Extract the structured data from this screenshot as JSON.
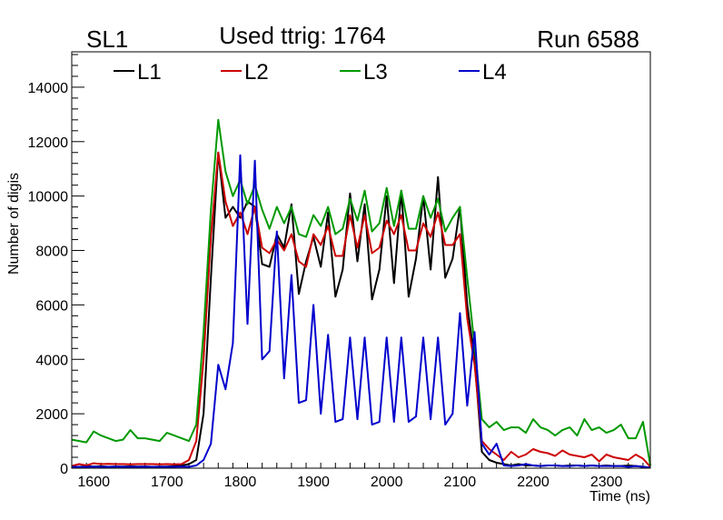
{
  "header": {
    "left": "SL1",
    "center": "Used ttrig: 1764",
    "right": "Run 6588"
  },
  "chart_data": {
    "type": "line",
    "xlabel": "Time (ns)",
    "ylabel": "Number of digis",
    "xlim": [
      1570,
      2360
    ],
    "ylim": [
      0,
      15300
    ],
    "xticks": [
      1600,
      1700,
      1800,
      1900,
      2000,
      2100,
      2200,
      2300
    ],
    "yticks": [
      0,
      2000,
      4000,
      6000,
      8000,
      10000,
      12000,
      14000
    ],
    "legend_position": "top",
    "series": [
      {
        "name": "L1",
        "color": "#000000",
        "points": [
          [
            1570,
            50
          ],
          [
            1580,
            50
          ],
          [
            1590,
            70
          ],
          [
            1600,
            60
          ],
          [
            1610,
            70
          ],
          [
            1620,
            50
          ],
          [
            1630,
            60
          ],
          [
            1640,
            60
          ],
          [
            1650,
            70
          ],
          [
            1660,
            60
          ],
          [
            1670,
            60
          ],
          [
            1680,
            50
          ],
          [
            1690,
            60
          ],
          [
            1700,
            60
          ],
          [
            1710,
            80
          ],
          [
            1720,
            100
          ],
          [
            1730,
            150
          ],
          [
            1740,
            300
          ],
          [
            1750,
            2000
          ],
          [
            1760,
            7000
          ],
          [
            1770,
            11600
          ],
          [
            1780,
            9200
          ],
          [
            1790,
            9600
          ],
          [
            1800,
            9200
          ],
          [
            1810,
            9800
          ],
          [
            1820,
            9600
          ],
          [
            1830,
            7500
          ],
          [
            1840,
            7400
          ],
          [
            1850,
            8600
          ],
          [
            1860,
            8100
          ],
          [
            1870,
            9700
          ],
          [
            1880,
            6400
          ],
          [
            1890,
            7600
          ],
          [
            1900,
            8500
          ],
          [
            1910,
            7400
          ],
          [
            1920,
            9400
          ],
          [
            1930,
            6300
          ],
          [
            1940,
            7300
          ],
          [
            1950,
            10100
          ],
          [
            1960,
            7600
          ],
          [
            1970,
            9700
          ],
          [
            1980,
            6200
          ],
          [
            1990,
            7300
          ],
          [
            2000,
            10000
          ],
          [
            2010,
            6800
          ],
          [
            2020,
            10200
          ],
          [
            2030,
            6300
          ],
          [
            2040,
            7700
          ],
          [
            2050,
            10000
          ],
          [
            2060,
            7300
          ],
          [
            2070,
            10700
          ],
          [
            2080,
            7000
          ],
          [
            2090,
            7700
          ],
          [
            2100,
            9600
          ],
          [
            2110,
            6000
          ],
          [
            2120,
            4000
          ],
          [
            2130,
            600
          ],
          [
            2140,
            300
          ],
          [
            2150,
            200
          ],
          [
            2160,
            150
          ],
          [
            2170,
            100
          ],
          [
            2180,
            150
          ],
          [
            2190,
            100
          ],
          [
            2200,
            100
          ],
          [
            2210,
            80
          ],
          [
            2220,
            100
          ],
          [
            2230,
            100
          ],
          [
            2240,
            80
          ],
          [
            2250,
            100
          ],
          [
            2260,
            100
          ],
          [
            2270,
            80
          ],
          [
            2280,
            100
          ],
          [
            2290,
            80
          ],
          [
            2300,
            100
          ],
          [
            2310,
            80
          ],
          [
            2320,
            80
          ],
          [
            2330,
            100
          ],
          [
            2340,
            80
          ],
          [
            2350,
            50
          ],
          [
            2360,
            20
          ]
        ]
      },
      {
        "name": "L2",
        "color": "#cc0000",
        "points": [
          [
            1570,
            80
          ],
          [
            1580,
            150
          ],
          [
            1590,
            100
          ],
          [
            1600,
            180
          ],
          [
            1610,
            150
          ],
          [
            1620,
            160
          ],
          [
            1630,
            150
          ],
          [
            1640,
            150
          ],
          [
            1650,
            140
          ],
          [
            1660,
            150
          ],
          [
            1670,
            150
          ],
          [
            1680,
            150
          ],
          [
            1690,
            140
          ],
          [
            1700,
            150
          ],
          [
            1710,
            140
          ],
          [
            1720,
            150
          ],
          [
            1730,
            300
          ],
          [
            1740,
            1000
          ],
          [
            1750,
            4000
          ],
          [
            1760,
            8500
          ],
          [
            1770,
            11600
          ],
          [
            1780,
            9800
          ],
          [
            1790,
            8900
          ],
          [
            1800,
            9400
          ],
          [
            1810,
            8600
          ],
          [
            1820,
            9600
          ],
          [
            1830,
            8100
          ],
          [
            1840,
            7900
          ],
          [
            1850,
            8400
          ],
          [
            1860,
            8000
          ],
          [
            1870,
            8600
          ],
          [
            1880,
            7600
          ],
          [
            1890,
            7400
          ],
          [
            1900,
            8600
          ],
          [
            1910,
            8200
          ],
          [
            1920,
            8900
          ],
          [
            1930,
            7800
          ],
          [
            1940,
            7800
          ],
          [
            1950,
            9300
          ],
          [
            1960,
            8100
          ],
          [
            1970,
            9300
          ],
          [
            1980,
            7900
          ],
          [
            1990,
            8100
          ],
          [
            2000,
            9100
          ],
          [
            2010,
            8600
          ],
          [
            2020,
            9300
          ],
          [
            2030,
            8000
          ],
          [
            2040,
            8000
          ],
          [
            2050,
            9000
          ],
          [
            2060,
            8500
          ],
          [
            2070,
            9400
          ],
          [
            2080,
            8200
          ],
          [
            2090,
            8200
          ],
          [
            2100,
            8600
          ],
          [
            2110,
            5500
          ],
          [
            2120,
            3800
          ],
          [
            2130,
            1000
          ],
          [
            2140,
            700
          ],
          [
            2150,
            500
          ],
          [
            2160,
            300
          ],
          [
            2170,
            600
          ],
          [
            2180,
            400
          ],
          [
            2190,
            500
          ],
          [
            2200,
            700
          ],
          [
            2210,
            600
          ],
          [
            2220,
            550
          ],
          [
            2230,
            450
          ],
          [
            2240,
            650
          ],
          [
            2250,
            500
          ],
          [
            2260,
            450
          ],
          [
            2270,
            400
          ],
          [
            2280,
            500
          ],
          [
            2290,
            250
          ],
          [
            2300,
            500
          ],
          [
            2310,
            400
          ],
          [
            2320,
            350
          ],
          [
            2330,
            300
          ],
          [
            2340,
            500
          ],
          [
            2350,
            350
          ],
          [
            2360,
            50
          ]
        ]
      },
      {
        "name": "L3",
        "color": "#009900",
        "points": [
          [
            1570,
            1050
          ],
          [
            1580,
            1000
          ],
          [
            1590,
            950
          ],
          [
            1600,
            1350
          ],
          [
            1610,
            1200
          ],
          [
            1620,
            1100
          ],
          [
            1630,
            1000
          ],
          [
            1640,
            1050
          ],
          [
            1650,
            1400
          ],
          [
            1660,
            1100
          ],
          [
            1670,
            1100
          ],
          [
            1680,
            1050
          ],
          [
            1690,
            1000
          ],
          [
            1700,
            1300
          ],
          [
            1710,
            1200
          ],
          [
            1720,
            1100
          ],
          [
            1730,
            1000
          ],
          [
            1740,
            1600
          ],
          [
            1750,
            5000
          ],
          [
            1760,
            9500
          ],
          [
            1770,
            12800
          ],
          [
            1780,
            10900
          ],
          [
            1790,
            10000
          ],
          [
            1800,
            10600
          ],
          [
            1810,
            9700
          ],
          [
            1820,
            10400
          ],
          [
            1830,
            9500
          ],
          [
            1840,
            8800
          ],
          [
            1850,
            9600
          ],
          [
            1860,
            9000
          ],
          [
            1870,
            9600
          ],
          [
            1880,
            8600
          ],
          [
            1890,
            8500
          ],
          [
            1900,
            9300
          ],
          [
            1910,
            8900
          ],
          [
            1920,
            9600
          ],
          [
            1930,
            8600
          ],
          [
            1940,
            8800
          ],
          [
            1950,
            9900
          ],
          [
            1960,
            9100
          ],
          [
            1970,
            10200
          ],
          [
            1980,
            8700
          ],
          [
            1990,
            9000
          ],
          [
            2000,
            10300
          ],
          [
            2010,
            8900
          ],
          [
            2020,
            10200
          ],
          [
            2030,
            8800
          ],
          [
            2040,
            8800
          ],
          [
            2050,
            10000
          ],
          [
            2060,
            9200
          ],
          [
            2070,
            9900
          ],
          [
            2080,
            8700
          ],
          [
            2090,
            9200
          ],
          [
            2100,
            9600
          ],
          [
            2110,
            7000
          ],
          [
            2120,
            4500
          ],
          [
            2130,
            1800
          ],
          [
            2140,
            1500
          ],
          [
            2150,
            1700
          ],
          [
            2160,
            1400
          ],
          [
            2170,
            1500
          ],
          [
            2180,
            1500
          ],
          [
            2190,
            1300
          ],
          [
            2200,
            1800
          ],
          [
            2210,
            1500
          ],
          [
            2220,
            1400
          ],
          [
            2230,
            1200
          ],
          [
            2240,
            1400
          ],
          [
            2250,
            1500
          ],
          [
            2260,
            1200
          ],
          [
            2270,
            1800
          ],
          [
            2280,
            1400
          ],
          [
            2290,
            1500
          ],
          [
            2300,
            1300
          ],
          [
            2310,
            1400
          ],
          [
            2320,
            1600
          ],
          [
            2330,
            1100
          ],
          [
            2340,
            1100
          ],
          [
            2350,
            1700
          ],
          [
            2360,
            100
          ]
        ]
      },
      {
        "name": "L4",
        "color": "#0000cc",
        "points": [
          [
            1570,
            50
          ],
          [
            1580,
            50
          ],
          [
            1590,
            50
          ],
          [
            1600,
            60
          ],
          [
            1610,
            50
          ],
          [
            1620,
            50
          ],
          [
            1630,
            60
          ],
          [
            1640,
            50
          ],
          [
            1650,
            50
          ],
          [
            1660,
            50
          ],
          [
            1670,
            60
          ],
          [
            1680,
            50
          ],
          [
            1690,
            50
          ],
          [
            1700,
            50
          ],
          [
            1710,
            50
          ],
          [
            1720,
            60
          ],
          [
            1730,
            50
          ],
          [
            1740,
            100
          ],
          [
            1750,
            300
          ],
          [
            1760,
            900
          ],
          [
            1770,
            3800
          ],
          [
            1780,
            2900
          ],
          [
            1790,
            4600
          ],
          [
            1800,
            11500
          ],
          [
            1810,
            5300
          ],
          [
            1820,
            11300
          ],
          [
            1830,
            4000
          ],
          [
            1840,
            4300
          ],
          [
            1850,
            8700
          ],
          [
            1860,
            3300
          ],
          [
            1870,
            7100
          ],
          [
            1880,
            2400
          ],
          [
            1890,
            2500
          ],
          [
            1900,
            6000
          ],
          [
            1910,
            2000
          ],
          [
            1920,
            4900
          ],
          [
            1930,
            1700
          ],
          [
            1940,
            1800
          ],
          [
            1950,
            4800
          ],
          [
            1960,
            1800
          ],
          [
            1970,
            4800
          ],
          [
            1980,
            1600
          ],
          [
            1990,
            1700
          ],
          [
            2000,
            4800
          ],
          [
            2010,
            1700
          ],
          [
            2020,
            4800
          ],
          [
            2030,
            1700
          ],
          [
            2040,
            1900
          ],
          [
            2050,
            4800
          ],
          [
            2060,
            1800
          ],
          [
            2070,
            4800
          ],
          [
            2080,
            1600
          ],
          [
            2090,
            2000
          ],
          [
            2100,
            5700
          ],
          [
            2110,
            2300
          ],
          [
            2120,
            5000
          ],
          [
            2130,
            900
          ],
          [
            2140,
            500
          ],
          [
            2150,
            900
          ],
          [
            2160,
            100
          ],
          [
            2170,
            80
          ],
          [
            2180,
            100
          ],
          [
            2190,
            150
          ],
          [
            2200,
            100
          ],
          [
            2210,
            80
          ],
          [
            2220,
            100
          ],
          [
            2230,
            100
          ],
          [
            2240,
            80
          ],
          [
            2250,
            80
          ],
          [
            2260,
            100
          ],
          [
            2270,
            80
          ],
          [
            2280,
            100
          ],
          [
            2290,
            80
          ],
          [
            2300,
            80
          ],
          [
            2310,
            80
          ],
          [
            2320,
            80
          ],
          [
            2330,
            50
          ],
          [
            2340,
            80
          ],
          [
            2350,
            50
          ],
          [
            2360,
            20
          ]
        ]
      }
    ]
  }
}
